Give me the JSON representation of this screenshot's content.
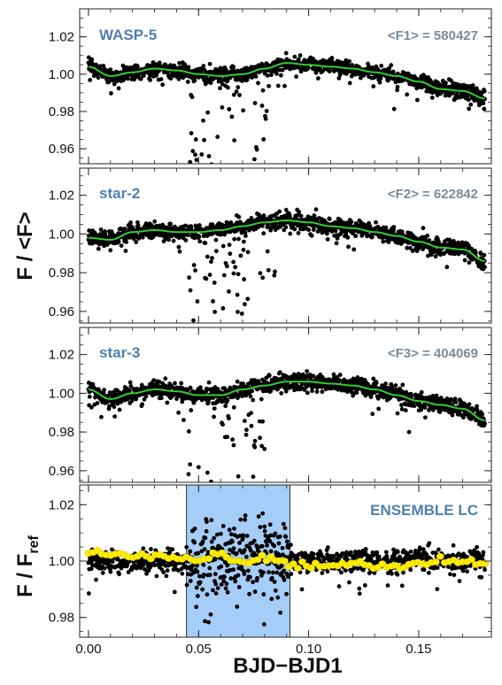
{
  "figure": {
    "ylabel_top": "F / <F>",
    "ylabel_bottom_main": "F / F",
    "ylabel_bottom_sub": "ref",
    "xlabel": "BJD−BJD1"
  },
  "colors": {
    "points": "#000000",
    "trend": "#33cc33",
    "ensemble": "#ffee00",
    "highlight": "#a6cdf7",
    "panel_label": "#4f7fae",
    "flux_label": "#7c8a98"
  },
  "chart_data": [
    {
      "type": "scatter",
      "title": "WASP-5",
      "annotation": "<F1> = 580427",
      "xlim": [
        -0.004,
        0.183
      ],
      "ylim": [
        0.952,
        1.035
      ],
      "xticks": [
        "0.00",
        "0.05",
        "0.10",
        "0.15"
      ],
      "xtick_values": [
        0.0,
        0.05,
        0.1,
        0.15
      ],
      "yticks": [
        "0.96",
        "0.98",
        "1.00",
        "1.02"
      ],
      "ytick_values": [
        0.96,
        0.98,
        1.0,
        1.02
      ],
      "series": [
        {
          "style": "black-dots",
          "x_range": [
            0.0,
            0.18
          ],
          "n_points": 1300,
          "scatter_rms": 0.0035
        },
        {
          "style": "green-line",
          "x": [
            0.0,
            0.01,
            0.02,
            0.03,
            0.04,
            0.05,
            0.06,
            0.07,
            0.08,
            0.09,
            0.1,
            0.11,
            0.12,
            0.13,
            0.14,
            0.15,
            0.16,
            0.17,
            0.18
          ],
          "y": [
            1.004,
            0.999,
            1.001,
            1.003,
            1.002,
            1.0,
            0.999,
            1.0,
            1.003,
            1.006,
            1.005,
            1.004,
            1.003,
            1.001,
            0.999,
            0.996,
            0.992,
            0.991,
            0.987
          ]
        }
      ]
    },
    {
      "type": "scatter",
      "title": "star-2",
      "annotation": "<F2> = 622842",
      "xlim": [
        -0.004,
        0.183
      ],
      "ylim": [
        0.954,
        1.034
      ],
      "xticks": [
        "0.00",
        "0.05",
        "0.10",
        "0.15"
      ],
      "xtick_values": [
        0.0,
        0.05,
        0.1,
        0.15
      ],
      "yticks": [
        "0.96",
        "0.98",
        "1.00",
        "1.02"
      ],
      "ytick_values": [
        0.96,
        0.98,
        1.0,
        1.02
      ],
      "series": [
        {
          "style": "black-dots",
          "x_range": [
            0.0,
            0.18
          ],
          "n_points": 1300,
          "scatter_rms": 0.0037
        },
        {
          "style": "green-line",
          "x": [
            0.0,
            0.01,
            0.02,
            0.03,
            0.04,
            0.05,
            0.06,
            0.07,
            0.08,
            0.09,
            0.1,
            0.11,
            0.12,
            0.13,
            0.14,
            0.15,
            0.16,
            0.17,
            0.18
          ],
          "y": [
            0.998,
            0.997,
            1.001,
            1.002,
            1.001,
            1.001,
            1.002,
            1.004,
            1.006,
            1.007,
            1.006,
            1.004,
            1.003,
            1.001,
            0.999,
            0.996,
            0.993,
            0.992,
            0.986
          ]
        }
      ]
    },
    {
      "type": "scatter",
      "title": "star-3",
      "annotation": "<F3> = 404069",
      "xlim": [
        -0.004,
        0.183
      ],
      "ylim": [
        0.954,
        1.034
      ],
      "xticks": [
        "0.00",
        "0.05",
        "0.10",
        "0.15"
      ],
      "xtick_values": [
        0.0,
        0.05,
        0.1,
        0.15
      ],
      "yticks": [
        "0.96",
        "0.98",
        "1.00",
        "1.02"
      ],
      "ytick_values": [
        0.96,
        0.98,
        1.0,
        1.02
      ],
      "series": [
        {
          "style": "black-dots",
          "x_range": [
            0.0,
            0.18
          ],
          "n_points": 1300,
          "scatter_rms": 0.0037
        },
        {
          "style": "green-line",
          "x": [
            0.0,
            0.01,
            0.02,
            0.03,
            0.04,
            0.05,
            0.06,
            0.07,
            0.08,
            0.09,
            0.1,
            0.11,
            0.12,
            0.13,
            0.14,
            0.15,
            0.16,
            0.17,
            0.18
          ],
          "y": [
            1.002,
            0.997,
            1.0,
            1.002,
            1.001,
            0.999,
            0.999,
            1.002,
            1.004,
            1.006,
            1.006,
            1.005,
            1.004,
            1.002,
            0.999,
            0.996,
            0.994,
            0.992,
            0.986
          ]
        }
      ]
    },
    {
      "type": "scatter",
      "title": "ENSEMBLE LC",
      "xlim": [
        -0.004,
        0.183
      ],
      "ylim": [
        0.973,
        1.027
      ],
      "xticks": [
        "0.00",
        "0.05",
        "0.10",
        "0.15"
      ],
      "xtick_values": [
        0.0,
        0.05,
        0.1,
        0.15
      ],
      "yticks": [
        "0.98",
        "1.00",
        "1.02"
      ],
      "ytick_values": [
        0.98,
        1.0,
        1.02
      ],
      "highlight_x": [
        0.0445,
        0.0915
      ],
      "series": [
        {
          "style": "black-dots",
          "x_range": [
            0.0,
            0.18
          ],
          "n_points": 1100,
          "scatter_rms": 0.0035,
          "highlight_scatter_rms": 0.012
        },
        {
          "style": "yellow-dots",
          "x_range": [
            0.0,
            0.18
          ],
          "n_points": 90,
          "x": [
            0.0,
            0.02,
            0.04,
            0.05,
            0.06,
            0.07,
            0.08,
            0.09,
            0.1,
            0.12,
            0.14,
            0.16,
            0.18
          ],
          "y": [
            1.003,
            1.002,
            1.001,
            1.0,
            1.002,
            0.999,
            1.001,
            0.999,
            0.998,
            0.999,
            0.998,
            1.0,
            0.999
          ]
        }
      ]
    }
  ]
}
